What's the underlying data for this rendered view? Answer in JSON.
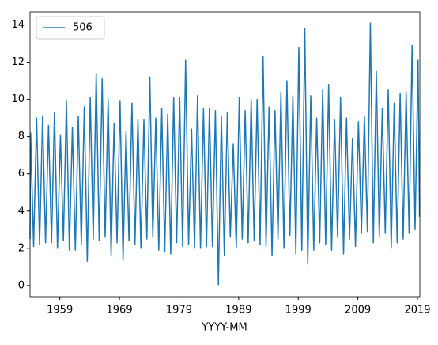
{
  "chart_data": {
    "type": "line",
    "xlabel": "YYYY-MM",
    "x": [
      1954.0,
      1954.1,
      1954.6,
      1955.1,
      1955.6,
      1956.1,
      1956.6,
      1957.1,
      1957.6,
      1958.1,
      1958.6,
      1959.1,
      1959.6,
      1960.1,
      1960.6,
      1961.1,
      1961.6,
      1962.1,
      1962.6,
      1963.1,
      1963.6,
      1964.1,
      1964.6,
      1965.1,
      1965.6,
      1966.1,
      1966.6,
      1967.1,
      1967.6,
      1968.1,
      1968.6,
      1969.1,
      1969.6,
      1970.1,
      1970.6,
      1971.1,
      1971.6,
      1972.1,
      1972.6,
      1973.1,
      1973.6,
      1974.1,
      1974.6,
      1975.1,
      1975.6,
      1976.1,
      1976.6,
      1977.1,
      1977.6,
      1978.1,
      1978.6,
      1979.1,
      1979.6,
      1980.1,
      1980.6,
      1981.1,
      1981.6,
      1982.1,
      1982.6,
      1983.1,
      1983.6,
      1984.1,
      1984.6,
      1985.1,
      1985.6,
      1986.1,
      1986.6,
      1987.1,
      1987.6,
      1988.1,
      1988.6,
      1989.1,
      1989.6,
      1990.1,
      1990.6,
      1991.1,
      1991.6,
      1992.1,
      1992.6,
      1993.1,
      1993.6,
      1994.1,
      1994.6,
      1995.1,
      1995.6,
      1996.1,
      1996.6,
      1997.1,
      1997.6,
      1998.1,
      1998.6,
      1999.1,
      1999.6,
      2000.1,
      2000.6,
      2001.1,
      2001.6,
      2002.1,
      2002.6,
      2003.1,
      2003.6,
      2004.1,
      2004.6,
      2005.1,
      2005.6,
      2006.1,
      2006.6,
      2007.1,
      2007.6,
      2008.1,
      2008.6,
      2009.1,
      2009.6,
      2010.1,
      2010.6,
      2011.1,
      2011.6,
      2012.1,
      2012.6,
      2013.1,
      2013.6,
      2014.1,
      2014.6,
      2015.1,
      2015.6,
      2016.1,
      2016.6,
      2017.1,
      2017.6,
      2018.1,
      2018.6,
      2019.1,
      2019.35
    ],
    "series": [
      {
        "name": "506",
        "color": "#1f77b4",
        "values": [
          2.5,
          8.2,
          2.1,
          9.0,
          2.2,
          9.1,
          2.3,
          8.6,
          2.3,
          9.3,
          2.0,
          8.1,
          2.4,
          9.9,
          1.9,
          8.5,
          1.9,
          9.1,
          2.2,
          9.6,
          1.3,
          10.1,
          2.5,
          11.4,
          2.4,
          11.1,
          2.6,
          10.0,
          1.6,
          8.7,
          2.3,
          9.9,
          1.35,
          8.3,
          2.4,
          9.8,
          2.2,
          8.9,
          2.0,
          8.9,
          2.5,
          11.2,
          2.6,
          9.0,
          1.9,
          9.5,
          1.8,
          9.2,
          1.7,
          10.1,
          2.3,
          10.1,
          2.1,
          12.1,
          2.2,
          8.4,
          2.0,
          10.2,
          2.0,
          9.5,
          2.1,
          9.5,
          2.1,
          9.4,
          0.05,
          9.1,
          1.6,
          9.3,
          2.6,
          7.6,
          2.0,
          10.1,
          2.5,
          9.4,
          2.3,
          10.0,
          2.4,
          10.0,
          2.2,
          12.3,
          2.1,
          9.6,
          1.6,
          9.4,
          2.5,
          10.4,
          2.0,
          11.0,
          2.7,
          10.2,
          1.7,
          12.8,
          1.9,
          13.8,
          1.15,
          10.2,
          1.9,
          9.0,
          2.3,
          10.5,
          2.2,
          10.8,
          1.9,
          8.9,
          2.6,
          10.1,
          1.7,
          9.0,
          2.5,
          7.9,
          2.1,
          8.8,
          2.8,
          9.1,
          2.9,
          14.1,
          2.3,
          11.5,
          2.6,
          9.5,
          2.8,
          10.5,
          2.0,
          9.8,
          2.3,
          10.3,
          2.5,
          10.4,
          2.8,
          12.9,
          3.0,
          12.1,
          3.7
        ]
      }
    ],
    "xlim": [
      1954.0,
      2019.4
    ],
    "xticks": [
      1959,
      1969,
      1979,
      1989,
      1999,
      2009,
      2019
    ],
    "ylim": [
      -0.6,
      14.7
    ],
    "yticks": [
      0,
      2,
      4,
      6,
      8,
      10,
      12,
      14
    ],
    "grid": false,
    "legend": "upper left"
  }
}
